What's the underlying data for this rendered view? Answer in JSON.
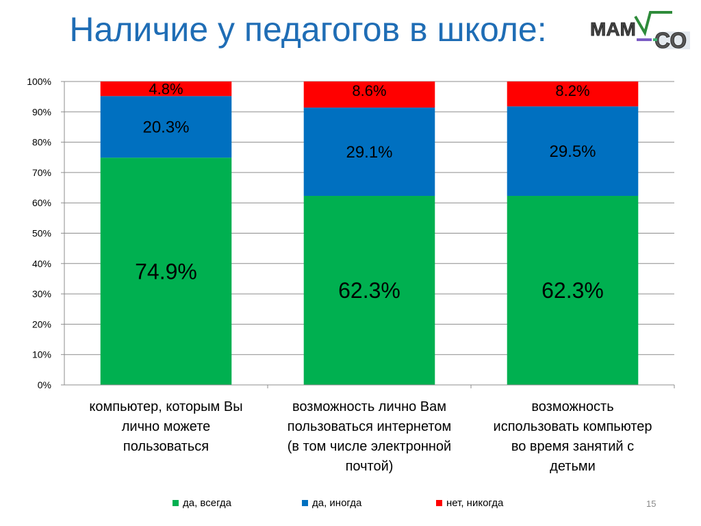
{
  "slide": {
    "title": "Наличие у педагогов в школе:",
    "page_number": "15"
  },
  "logo": {
    "text": "МАМСО"
  },
  "colors": {
    "title": "#1f6db5",
    "series": [
      "#00b050",
      "#0070c0",
      "#ff0000"
    ]
  },
  "chart_data": {
    "type": "bar",
    "stacked": true,
    "categories": [
      "компьютер, которым  Вы лично можете пользоваться",
      "возможность лично Вам пользоваться интернетом (в том числе электронной почтой)",
      "возможность использовать компьютер во время занятий  с детьми"
    ],
    "category_lines": [
      [
        "компьютер, которым  Вы",
        "лично можете",
        "пользоваться"
      ],
      [
        "возможность лично Вам",
        "пользоваться интернетом",
        "(в том числе электронной",
        "почтой)"
      ],
      [
        "возможность",
        "использовать компьютер",
        "во время занятий  с",
        "детьми"
      ]
    ],
    "series": [
      {
        "name": "да, всегда",
        "values": [
          74.9,
          62.3,
          62.3
        ],
        "labels": [
          "74.9%",
          "62.3%",
          "62.3%"
        ]
      },
      {
        "name": "да, иногда",
        "values": [
          20.3,
          29.1,
          29.5
        ],
        "labels": [
          "20.3%",
          "29.1%",
          "29.5%"
        ]
      },
      {
        "name": "нет, никогда",
        "values": [
          4.8,
          8.6,
          8.2
        ],
        "labels": [
          "4.8%",
          "8.6%",
          "8.2%"
        ]
      }
    ],
    "ylim": [
      0,
      100
    ],
    "yticks": [
      "0%",
      "10%",
      "20%",
      "30%",
      "40%",
      "50%",
      "60%",
      "70%",
      "80%",
      "90%",
      "100%"
    ],
    "grid": true,
    "legend_position": "bottom"
  }
}
